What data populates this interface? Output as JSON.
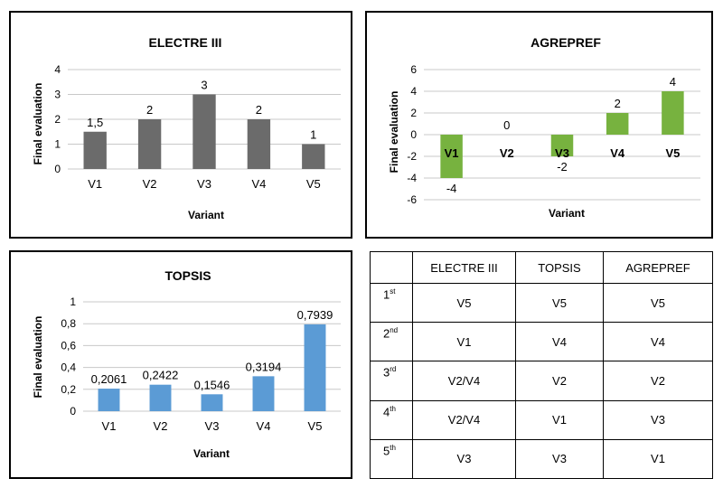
{
  "chart_data": [
    {
      "type": "bar",
      "title": "ELECTRE III",
      "xlabel": "Variant",
      "ylabel": "Final evaluation",
      "categories": [
        "V1",
        "V2",
        "V3",
        "V4",
        "V5"
      ],
      "values": [
        1.5,
        2,
        3,
        2,
        1
      ],
      "data_labels": [
        "1,5",
        "2",
        "3",
        "2",
        "1"
      ],
      "ylim": [
        0,
        4
      ],
      "yticks": [
        "0",
        "1",
        "2",
        "3",
        "4"
      ],
      "color": "#6b6b6b",
      "grid": true,
      "legend": "none"
    },
    {
      "type": "bar",
      "title": "AGREPREF",
      "xlabel": "Variant",
      "ylabel": "Final evaluation",
      "categories": [
        "V1",
        "V2",
        "V3",
        "V4",
        "V5"
      ],
      "values": [
        -4,
        0,
        -2,
        2,
        4
      ],
      "data_labels": [
        "-4",
        "0",
        "-2",
        "2",
        "4"
      ],
      "ylim": [
        -6,
        6
      ],
      "yticks": [
        "-6",
        "-4",
        "-2",
        "0",
        "2",
        "4",
        "6"
      ],
      "color": "#77b23f",
      "grid": true,
      "legend": "none"
    },
    {
      "type": "bar",
      "title": "TOPSIS",
      "xlabel": "Variant",
      "ylabel": "Final evaluation",
      "categories": [
        "V1",
        "V2",
        "V3",
        "V4",
        "V5"
      ],
      "values": [
        0.2061,
        0.2422,
        0.1546,
        0.3194,
        0.7939
      ],
      "data_labels": [
        "0,2061",
        "0,2422",
        "0,1546",
        "0,3194",
        "0,7939"
      ],
      "ylim": [
        0,
        1
      ],
      "yticks": [
        "0",
        "0,2",
        "0,4",
        "0,6",
        "0,8",
        "1"
      ],
      "color": "#5b9bd5",
      "grid": true,
      "legend": "none"
    },
    {
      "type": "table",
      "columns": [
        "",
        "ELECTRE III",
        "TOPSIS",
        "AGREPREF"
      ],
      "rows": [
        {
          "rank_num": "1",
          "rank_suffix": "st",
          "cells": [
            "V5",
            "V5",
            "V5"
          ]
        },
        {
          "rank_num": "2",
          "rank_suffix": "nd",
          "cells": [
            "V1",
            "V4",
            "V4"
          ]
        },
        {
          "rank_num": "3",
          "rank_suffix": "rd",
          "cells": [
            "V2/V4",
            "V2",
            "V2"
          ]
        },
        {
          "rank_num": "4",
          "rank_suffix": "th",
          "cells": [
            "V2/V4",
            "V1",
            "V3"
          ]
        },
        {
          "rank_num": "5",
          "rank_suffix": "th",
          "cells": [
            "V3",
            "V3",
            "V1"
          ]
        }
      ]
    }
  ]
}
